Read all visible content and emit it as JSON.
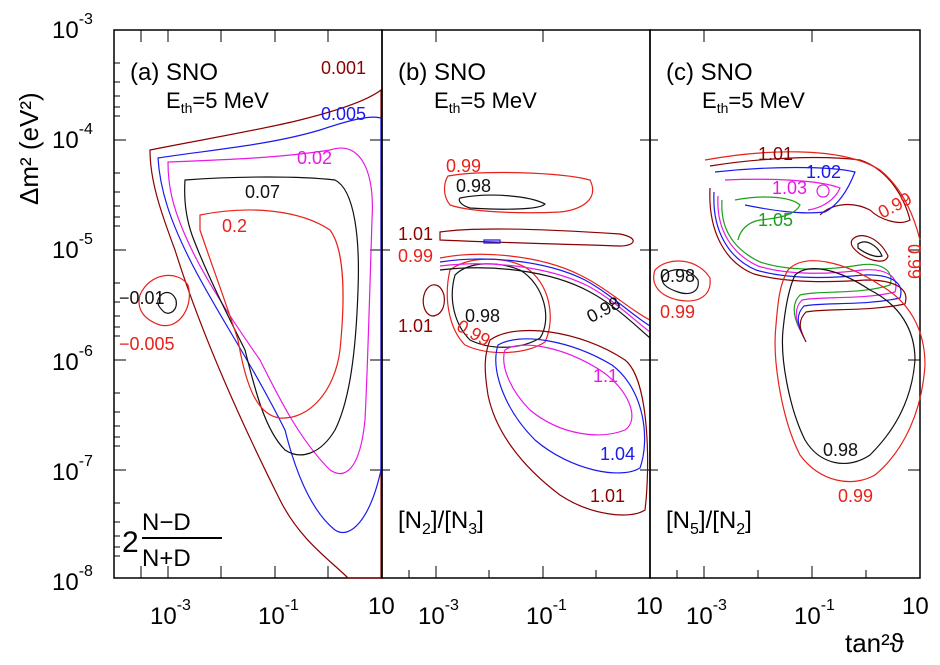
{
  "figure": {
    "ylabel": "Δm² (eV²)",
    "xlabel": "tan²ϑ"
  },
  "axes": {
    "y_ticks": [
      {
        "exp": "-3"
      },
      {
        "exp": "-4"
      },
      {
        "exp": "-5"
      },
      {
        "exp": "-6"
      },
      {
        "exp": "-7"
      },
      {
        "exp": "-8"
      }
    ],
    "x_ticks": [
      {
        "label": "10",
        "exp": "-3"
      },
      {
        "label": "10",
        "exp": "-1"
      },
      {
        "label": "10",
        "exp": ""
      }
    ]
  },
  "colors": {
    "darkred": "#8b0000",
    "red": "#e8221b",
    "blue": "#1a1aee",
    "magenta": "#e619e6",
    "black": "#111111",
    "green": "#1e9e1e"
  },
  "chart_data": [
    {
      "type": "contour",
      "panel": "(a) SNO",
      "threshold": "E_th=5 MeV",
      "quantity": "2(N−D)/(N+D)",
      "x_scale": "log",
      "y_scale": "log",
      "xlim": [
        0.0001,
        10
      ],
      "ylim": [
        1e-08,
        0.001
      ],
      "levels": [
        "0.001",
        "0.005",
        "0.02",
        "0.07",
        "0.2",
        "-0.01",
        "-0.005"
      ]
    },
    {
      "type": "contour",
      "panel": "(b) SNO",
      "threshold": "E_th=5 MeV",
      "quantity": "[N2]/[N3]",
      "x_scale": "log",
      "y_scale": "log",
      "xlim": [
        0.0001,
        10
      ],
      "ylim": [
        1e-08,
        0.001
      ],
      "levels": [
        "0.99",
        "0.98",
        "1.01",
        "1.1",
        "1.04"
      ]
    },
    {
      "type": "contour",
      "panel": "(c) SNO",
      "threshold": "E_th=5 MeV",
      "quantity": "[N5]/[N2]",
      "x_scale": "log",
      "y_scale": "log",
      "xlim": [
        0.0001,
        10
      ],
      "ylim": [
        1e-08,
        0.001
      ],
      "levels": [
        "1.01",
        "1.02",
        "1.03",
        "1.05",
        "0.99",
        "0.98"
      ]
    }
  ],
  "panels": [
    {
      "tag": "(a) SNO",
      "eth_sym": "E",
      "eth_sub": "th",
      "eth_val": "=5 MeV",
      "labels": [
        {
          "text": "0.001",
          "color": "darkred"
        },
        {
          "text": "0.005",
          "color": "blue"
        },
        {
          "text": "0.02",
          "color": "magenta"
        },
        {
          "text": "0.07",
          "color": "black"
        },
        {
          "text": "0.2",
          "color": "red"
        },
        {
          "text": "−0.01",
          "color": "black"
        },
        {
          "text": "−0.005",
          "color": "red"
        }
      ],
      "formula": {
        "lead": "2",
        "num": "N−D",
        "den": "N+D"
      }
    },
    {
      "tag": "(b) SNO",
      "eth_sym": "E",
      "eth_sub": "th",
      "eth_val": "=5 MeV",
      "labels": [
        {
          "text": "0.99",
          "color": "red"
        },
        {
          "text": "0.98",
          "color": "black"
        },
        {
          "text": "1.01",
          "color": "darkred"
        },
        {
          "text": "0.99",
          "color": "red"
        },
        {
          "text": "0.98",
          "color": "black"
        },
        {
          "text": "0.98",
          "color": "black"
        },
        {
          "text": "1.01",
          "color": "darkred"
        },
        {
          "text": "0.99",
          "color": "red"
        },
        {
          "text": "1.1",
          "color": "magenta"
        },
        {
          "text": "1.04",
          "color": "blue"
        },
        {
          "text": "1.01",
          "color": "darkred"
        }
      ],
      "ratio": {
        "a": "[N",
        "a_sub": "2",
        "b": "]/[N",
        "b_sub": "3",
        "c": "]"
      }
    },
    {
      "tag": "(c) SNO",
      "eth_sym": "E",
      "eth_sub": "th",
      "eth_val": "=5 MeV",
      "labels": [
        {
          "text": "1.01",
          "color": "darkred"
        },
        {
          "text": "1.02",
          "color": "blue"
        },
        {
          "text": "1.03",
          "color": "magenta"
        },
        {
          "text": "1.05",
          "color": "green"
        },
        {
          "text": "0.99",
          "color": "red"
        },
        {
          "text": "0.99",
          "color": "red"
        },
        {
          "text": "0.98",
          "color": "black"
        },
        {
          "text": "0.99",
          "color": "red"
        },
        {
          "text": "0.98",
          "color": "black"
        },
        {
          "text": "0.99",
          "color": "red"
        }
      ],
      "ratio": {
        "a": "[N",
        "a_sub": "5",
        "b": "]/[N",
        "b_sub": "2",
        "c": "]"
      }
    }
  ]
}
